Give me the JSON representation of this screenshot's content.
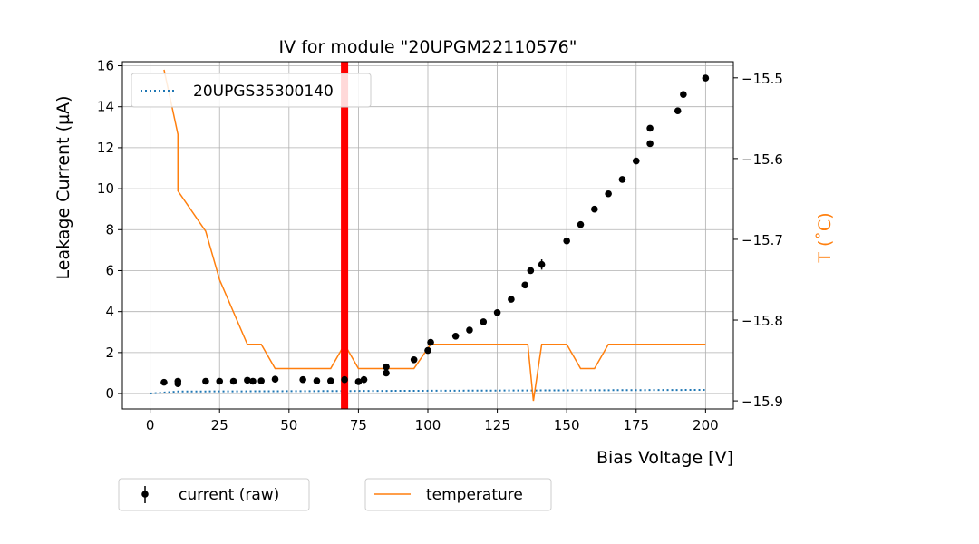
{
  "chart_data": {
    "type": "scatter",
    "title": "IV for module \"20UPGM22110576\"",
    "xlabel": "Bias Voltage [V]",
    "ylabel": "Leakage Current (µA)",
    "y2label": "T (˚C)",
    "xlim": [
      -10,
      210
    ],
    "ylim": [
      -0.75,
      16.2
    ],
    "y2lim": [
      -15.91,
      -15.48
    ],
    "xticks": [
      0,
      25,
      50,
      75,
      100,
      125,
      150,
      175,
      200
    ],
    "yticks": [
      0,
      2,
      4,
      6,
      8,
      10,
      12,
      14,
      16
    ],
    "y2ticks": [
      -15.5,
      -15.6,
      -15.7,
      -15.8,
      -15.9
    ],
    "y2tick_labels": [
      "−15.5",
      "−15.6",
      "−15.7",
      "−15.8",
      "−15.9"
    ],
    "grid": true,
    "vline": {
      "x": 70,
      "color": "#ff0000"
    },
    "reference_series": {
      "name": "20UPGS35300140",
      "style": "dotted",
      "color": "#1f77b4",
      "x": [
        0,
        10,
        200
      ],
      "y": [
        0.0,
        0.1,
        0.18
      ]
    },
    "current_series": {
      "name": "current (raw)",
      "color": "#000000",
      "x": [
        5,
        10,
        10,
        20,
        25,
        30,
        35,
        37,
        40,
        45,
        55,
        60,
        65,
        70,
        75,
        77,
        85,
        85,
        95,
        100,
        101,
        110,
        115,
        120,
        125,
        130,
        135,
        137,
        141,
        150,
        155,
        160,
        165,
        170,
        175,
        180,
        180,
        190,
        192,
        200
      ],
      "y": [
        0.55,
        0.6,
        0.48,
        0.6,
        0.6,
        0.6,
        0.65,
        0.6,
        0.62,
        0.7,
        0.68,
        0.62,
        0.62,
        0.68,
        0.58,
        0.68,
        1.3,
        1.0,
        1.65,
        2.1,
        2.5,
        2.8,
        3.1,
        3.5,
        3.95,
        4.6,
        5.3,
        6.0,
        6.3,
        7.45,
        8.25,
        9.0,
        9.75,
        10.45,
        11.35,
        12.95,
        12.2,
        13.8,
        14.6,
        15.4
      ],
      "yerr": [
        0,
        0,
        0,
        0,
        0,
        0,
        0,
        0,
        0,
        0,
        0,
        0,
        0,
        0,
        0,
        0,
        0,
        0,
        0,
        0,
        0,
        0,
        0,
        0,
        0,
        0,
        0,
        0,
        0.25,
        0,
        0,
        0,
        0,
        0,
        0,
        0,
        0,
        0,
        0,
        0
      ]
    },
    "temperature_series": {
      "name": "temperature",
      "color": "#ff7f0e",
      "x": [
        5,
        10,
        10,
        20,
        25,
        30,
        35,
        40,
        45,
        55,
        60,
        65,
        70,
        75,
        77,
        85,
        90,
        95,
        101,
        110,
        115,
        120,
        125,
        130,
        135,
        136,
        138,
        141,
        145,
        150,
        155,
        160,
        165,
        170,
        175,
        180,
        185,
        190,
        195,
        200
      ],
      "y": [
        -15.49,
        -15.57,
        -15.64,
        -15.69,
        -15.75,
        -15.79,
        -15.83,
        -15.83,
        -15.86,
        -15.86,
        -15.86,
        -15.86,
        -15.83,
        -15.86,
        -15.86,
        -15.86,
        -15.86,
        -15.86,
        -15.83,
        -15.83,
        -15.83,
        -15.83,
        -15.83,
        -15.83,
        -15.83,
        -15.83,
        -15.9,
        -15.83,
        -15.83,
        -15.83,
        -15.86,
        -15.86,
        -15.83,
        -15.83,
        -15.83,
        -15.83,
        -15.83,
        -15.83,
        -15.83,
        -15.83
      ]
    },
    "legend_top": {
      "placement": "top-left",
      "entries": [
        "20UPGS35300140"
      ]
    },
    "legend_bottom": {
      "placement": "below",
      "entries": [
        "current (raw)",
        "temperature"
      ]
    }
  }
}
